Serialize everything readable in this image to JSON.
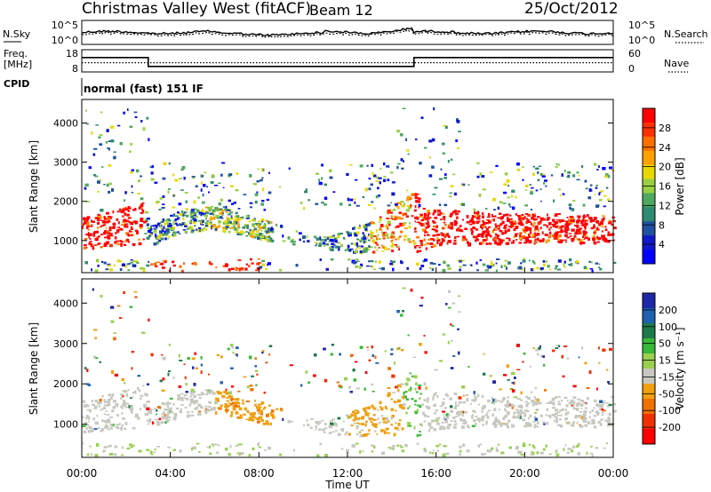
{
  "header": {
    "title": "Christmas Valley West (fitACF)",
    "beam": "Beam 12",
    "date": "25/Oct/2012"
  },
  "labels": {
    "nsky": "N.Sky",
    "nsearch": "N.Search",
    "freq": "Freq.",
    "freq_unit": "[MHz]",
    "nave": "Nave",
    "cpid": "CPID",
    "mode": "normal (fast) 151 IF"
  },
  "chart_data": [
    {
      "type": "line",
      "name": "noise-panel",
      "series": [
        {
          "name": "N.Sky",
          "style": "solid"
        },
        {
          "name": "N.Search",
          "style": "dotted"
        }
      ],
      "left_ticks": [
        "10^5",
        "10^0"
      ],
      "right_ticks": [
        "10^5",
        "10^0"
      ]
    },
    {
      "type": "line",
      "name": "freq-nave-panel",
      "left_ticks": [
        "18",
        "8"
      ],
      "right_ticks": [
        "60",
        "0"
      ],
      "freq_steps": [
        {
          "from": "00:00",
          "to": "03:00",
          "value": 14.5
        },
        {
          "from": "03:00",
          "to": "15:00",
          "value": 10.5
        },
        {
          "from": "15:00",
          "to": "24:00",
          "value": 14.5
        }
      ],
      "nave_level": 25
    },
    {
      "type": "heatmap",
      "name": "power",
      "ylabel": "Slant Range [km]",
      "yticks": [
        1000,
        2000,
        3000,
        4000
      ],
      "ylim": [
        180,
        4600
      ],
      "xlim": [
        "00:00",
        "24:00"
      ],
      "colorbar": {
        "label": "Power [dB]",
        "ticks": [
          "28",
          "24",
          "20",
          "16",
          "12",
          "8",
          "4"
        ],
        "colors": [
          "#ff0000",
          "#ff3000",
          "#ff7000",
          "#ffa000",
          "#e8d800",
          "#99d040",
          "#50a860",
          "#2e8a70",
          "#2050a0",
          "#1018c8",
          "#0000ff"
        ]
      }
    },
    {
      "type": "heatmap",
      "name": "velocity",
      "ylabel": "Slant Range [km]",
      "yticks": [
        1000,
        2000,
        3000,
        4000
      ],
      "ylim": [
        180,
        4600
      ],
      "xlim": [
        "00:00",
        "24:00"
      ],
      "colorbar": {
        "label": "Velocity [m s⁻¹]",
        "ticks": [
          "200",
          "100",
          "50",
          "15",
          "-15",
          "-50",
          "-100",
          "-200"
        ],
        "colors": [
          "#1e28a8",
          "#2060b0",
          "#1d7a4a",
          "#38b838",
          "#9ad050",
          "#c8c8c0",
          "#f0a010",
          "#f07000",
          "#f03000",
          "#ff0000"
        ]
      }
    }
  ],
  "xaxis": {
    "ticks": [
      "00:00",
      "04:00",
      "08:00",
      "12:00",
      "16:00",
      "20:00",
      "00:00"
    ],
    "label": "Time UT"
  },
  "colors": {
    "frame": "#000000",
    "power_red": "#ff2000",
    "velocity_grey": "#c8c8c0",
    "velocity_orange": "#f0a010"
  }
}
